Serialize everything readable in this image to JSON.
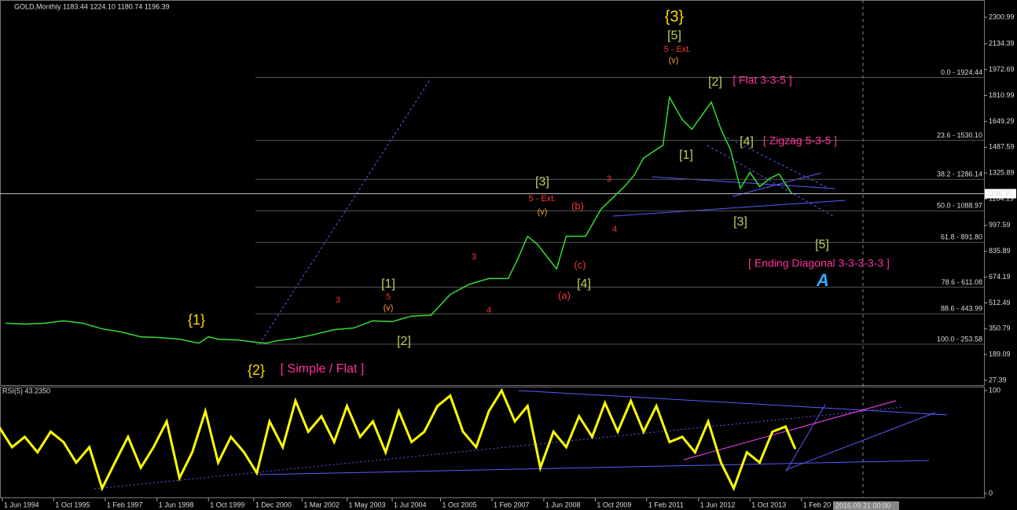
{
  "chart_data": [
    {
      "type": "line",
      "title": "GOLD,Monthly 1183.44 1224.10 1180.74 1196.39",
      "color": "#33dd33",
      "x": [
        1994.5,
        1995,
        1995.5,
        1996,
        1996.5,
        1997,
        1997.5,
        1998,
        1998.5,
        1999,
        1999.5,
        1999.75,
        2000,
        2000.5,
        2001,
        2001.25,
        2001.5,
        2002,
        2002.5,
        2003,
        2003.5,
        2004,
        2004.5,
        2005,
        2005.5,
        2006,
        2006.5,
        2007,
        2007.5,
        2007.75,
        2008,
        2008.25,
        2008.75,
        2009,
        2009.5,
        2009.9,
        2010.5,
        2010.75,
        2011,
        2011.5,
        2011.67,
        2012,
        2012.25,
        2012.75,
        2013,
        2013.25,
        2013.5,
        2013.75,
        2014,
        2014.25,
        2014.5,
        2014.83
      ],
      "values": [
        385,
        380,
        385,
        400,
        385,
        350,
        330,
        300,
        295,
        285,
        260,
        300,
        285,
        280,
        265,
        260,
        275,
        290,
        315,
        345,
        355,
        400,
        395,
        430,
        435,
        565,
        630,
        665,
        665,
        790,
        930,
        880,
        725,
        930,
        930,
        1100,
        1240,
        1310,
        1420,
        1500,
        1800,
        1660,
        1600,
        1770,
        1600,
        1470,
        1230,
        1330,
        1240,
        1290,
        1320,
        1196.39
      ],
      "xlim": [
        1994.36,
        2019.8
      ],
      "ylim": [
        27.39,
        2300.99
      ],
      "yticks": [
        27.39,
        189.09,
        350.79,
        512.49,
        674.19,
        835.89,
        997.59,
        1164.19,
        1325.89,
        1487.59,
        1649.29,
        1810.99,
        1972.69,
        2134.39,
        2300.99
      ],
      "xticks": [
        {
          "value": 1994.42,
          "label": "1 Jun 1994"
        },
        {
          "value": 1995.75,
          "label": "1 Oct 1995"
        },
        {
          "value": 1997.08,
          "label": "1 Feb 1997"
        },
        {
          "value": 1998.42,
          "label": "1 Jun 1998"
        },
        {
          "value": 1999.75,
          "label": "1 Oct 1999"
        },
        {
          "value": 2000.92,
          "label": "1 Dec 2000"
        },
        {
          "value": 2002.17,
          "label": "1 Mar 2002"
        },
        {
          "value": 2003.33,
          "label": "1 May 2003"
        },
        {
          "value": 2004.5,
          "label": "1 Jul 2004"
        },
        {
          "value": 2005.75,
          "label": "1 Oct 2005"
        },
        {
          "value": 2007.08,
          "label": "1 Feb 2007"
        },
        {
          "value": 2008.42,
          "label": "1 Jun 2008"
        },
        {
          "value": 2009.75,
          "label": "1 Oct 2009"
        },
        {
          "value": 2011.08,
          "label": "1 Feb 2011"
        },
        {
          "value": 2012.42,
          "label": "1 Jun 2012"
        },
        {
          "value": 2013.75,
          "label": "1 Oct 2013"
        },
        {
          "value": 2015.08,
          "label": "1 Feb 20"
        }
      ],
      "last_price": 1196.39,
      "fib_levels": [
        {
          "value": 1924.44,
          "label": "0.0 - 1924.44"
        },
        {
          "value": 1530.1,
          "label": "23.6 - 1530.10"
        },
        {
          "value": 1286.14,
          "label": "38.2 - 1286.14"
        },
        {
          "value": 1088.97,
          "label": "50.0 - 1088.97"
        },
        {
          "value": 891.8,
          "label": "61.8 - 891.80"
        },
        {
          "value": 611.08,
          "label": "78.6 - 611.08"
        },
        {
          "value": 443.99,
          "label": "88.6 - 443.99"
        },
        {
          "value": 253.58,
          "label": "100.0 - 253.58"
        }
      ],
      "annotations": [
        "{3}",
        "[5]",
        "5 - Ext.",
        "(v)",
        "[2]",
        "[ Flat 3-3-5 ]",
        "[4]",
        "[ Zigzag 5-3-5 ]",
        "[1]",
        "[3]",
        "[5]",
        "[ Ending Diagonal 3-3-3-3-3 ]",
        "A",
        "[3]",
        "5 - Ext.",
        "(v)",
        "(b)",
        "(c)",
        "(a)",
        "[4]",
        "[1]",
        "5",
        "(v)",
        "[2]",
        "{1}",
        "{2}",
        "[ Simple / Flat ]",
        "3",
        "4",
        "3",
        "3",
        "4"
      ],
      "cursor_label": "2016.09.21 00:00"
    },
    {
      "type": "line",
      "title": "RSI(5) 43.2350",
      "color": "#ffff00",
      "x": [
        1994.33,
        1994.67,
        1995,
        1995.33,
        1995.67,
        1996,
        1996.33,
        1996.67,
        1997,
        1997.33,
        1997.67,
        1998,
        1998.33,
        1998.67,
        1999,
        1999.33,
        1999.67,
        2000,
        2000.33,
        2000.67,
        2001,
        2001.33,
        2001.67,
        2002,
        2002.33,
        2002.67,
        2003,
        2003.33,
        2003.67,
        2004,
        2004.33,
        2004.67,
        2005,
        2005.33,
        2005.67,
        2006,
        2006.33,
        2006.67,
        2007,
        2007.33,
        2007.67,
        2008,
        2008.33,
        2008.67,
        2009,
        2009.33,
        2009.67,
        2010,
        2010.33,
        2010.67,
        2011,
        2011.33,
        2011.67,
        2012,
        2012.33,
        2012.67,
        2013,
        2013.33,
        2013.67,
        2014,
        2014.33,
        2014.67,
        2014.92
      ],
      "values": [
        65,
        45,
        55,
        40,
        60,
        50,
        30,
        45,
        5,
        30,
        55,
        25,
        45,
        70,
        15,
        40,
        80,
        30,
        55,
        40,
        20,
        70,
        45,
        90,
        60,
        75,
        50,
        85,
        55,
        70,
        40,
        80,
        50,
        60,
        85,
        95,
        60,
        45,
        80,
        100,
        70,
        85,
        25,
        60,
        45,
        75,
        55,
        88,
        60,
        90,
        60,
        85,
        50,
        55,
        40,
        70,
        30,
        5,
        40,
        30,
        60,
        65,
        43.235
      ],
      "xlim": [
        1994.36,
        2019.8
      ],
      "ylim": [
        0,
        100
      ],
      "yticks": [
        0,
        100
      ]
    }
  ]
}
